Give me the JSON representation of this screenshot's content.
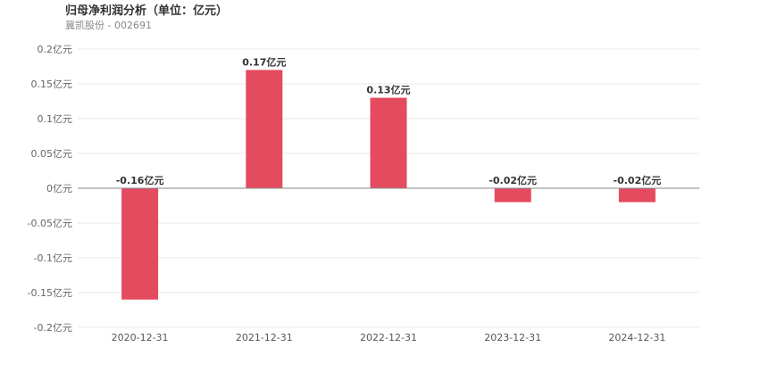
{
  "header": {
    "title": "归母净利润分析（单位：亿元）",
    "subtitle": "冀凯股份 - 002691"
  },
  "chart_data": {
    "type": "bar",
    "categories": [
      "2020-12-31",
      "2021-12-31",
      "2022-12-31",
      "2023-12-31",
      "2024-12-31"
    ],
    "values": [
      -0.16,
      0.17,
      0.13,
      -0.02,
      -0.02
    ],
    "data_labels": [
      "-0.16亿元",
      "0.17亿元",
      "0.13亿元",
      "-0.02亿元",
      "-0.02亿元"
    ],
    "ylim": [
      -0.2,
      0.2
    ],
    "yticks": [
      0.2,
      0.15,
      0.1,
      0.05,
      0,
      -0.05,
      -0.1,
      -0.15,
      -0.2
    ],
    "ytick_labels": [
      "0.2亿元",
      "0.15亿元",
      "0.1亿元",
      "0.05亿元",
      "0亿元",
      "-0.05亿元",
      "-0.1亿元",
      "-0.15亿元",
      "-0.2亿元"
    ],
    "bar_color": "#e54b5f",
    "grid": true
  }
}
